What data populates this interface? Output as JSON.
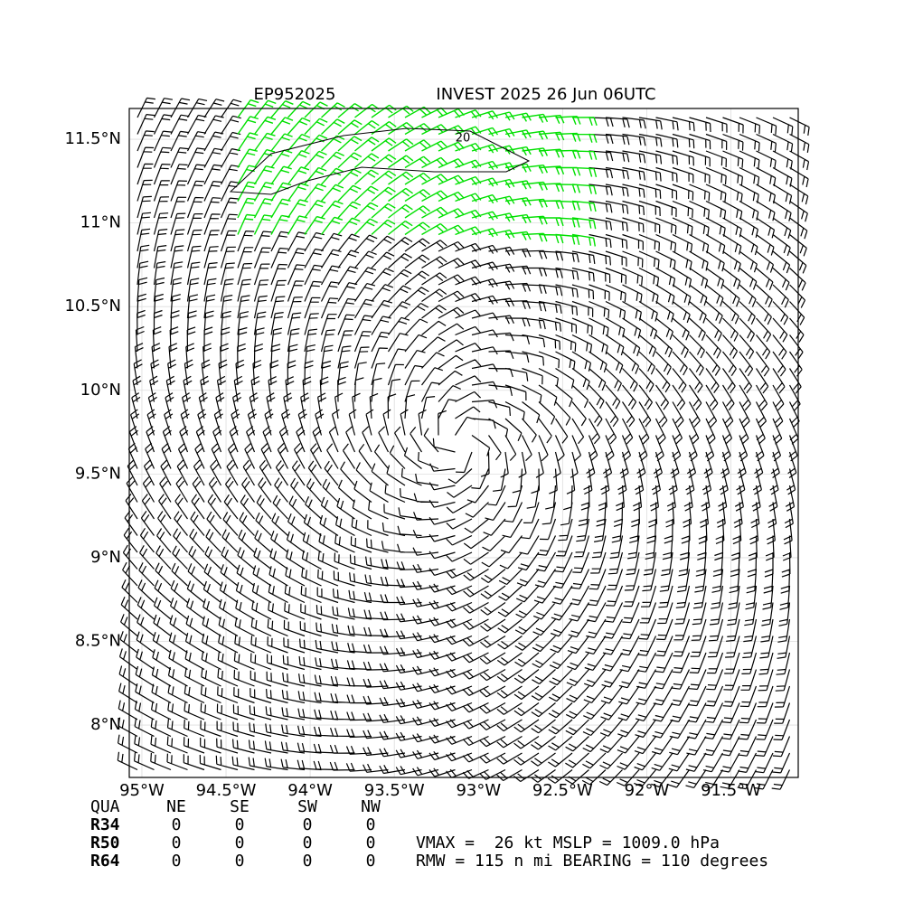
{
  "header": {
    "storm_id": "EP952025",
    "title": "INVEST 2025 26 Jun 06UTC"
  },
  "map": {
    "xlim": [
      -95.075,
      -91.1
    ],
    "ylim": [
      7.687,
      11.684
    ],
    "xticks": [
      {
        "value": -95,
        "label": "95°W"
      },
      {
        "value": -94.5,
        "label": "94.5°W"
      },
      {
        "value": -94,
        "label": "94°W"
      },
      {
        "value": -93.5,
        "label": "93.5°W"
      },
      {
        "value": -93,
        "label": "93°W"
      },
      {
        "value": -92.5,
        "label": "92.5°W"
      },
      {
        "value": -92,
        "label": "92°W"
      },
      {
        "value": -91.5,
        "label": "91.5°W"
      }
    ],
    "yticks": [
      {
        "value": 8,
        "label": "8°N"
      },
      {
        "value": 8.5,
        "label": "8.5°N"
      },
      {
        "value": 9,
        "label": "9°N"
      },
      {
        "value": 9.5,
        "label": "9.5°N"
      },
      {
        "value": 10,
        "label": "10°N"
      },
      {
        "value": 10.5,
        "label": "10.5°N"
      },
      {
        "value": 11,
        "label": "11°N"
      },
      {
        "value": 11.5,
        "label": "11.5°N"
      }
    ],
    "contour_label": 20
  },
  "table": {
    "header": [
      "QUA",
      "NE",
      "SE",
      "SW",
      "NW"
    ],
    "rows": [
      [
        "R34",
        0,
        0,
        0,
        0
      ],
      [
        "R50",
        0,
        0,
        0,
        0
      ],
      [
        "R64",
        0,
        0,
        0,
        0
      ]
    ]
  },
  "info": [
    "VMAX =  26 kt MSLP = 1009.0 hPa",
    "RMW = 115 n mi BEARING = 110 degrees"
  ]
}
